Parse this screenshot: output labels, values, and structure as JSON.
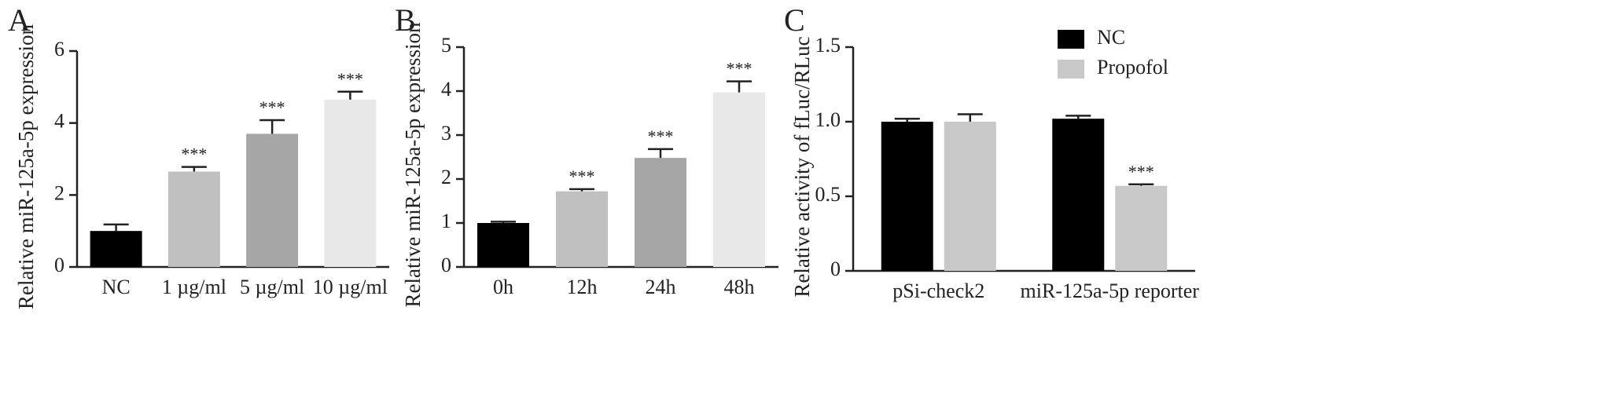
{
  "chart_data": [
    {
      "type": "bar",
      "panel_label": "A",
      "y_label": "Relative miR-125a-5p expression",
      "categories": [
        "NC",
        "1 µg/ml",
        "5 µg/ml",
        "10 µg/ml"
      ],
      "values": [
        1.0,
        2.65,
        3.7,
        4.65
      ],
      "errors": [
        0.18,
        0.13,
        0.38,
        0.22
      ],
      "colors": [
        "#000000",
        "#c0c0c0",
        "#a6a6a6",
        "#e8e8e8"
      ],
      "annotations": [
        null,
        "***",
        "***",
        "***"
      ],
      "ylim": [
        0,
        6
      ],
      "yticks": [
        0,
        2,
        4,
        6
      ]
    },
    {
      "type": "bar",
      "panel_label": "B",
      "y_label": "Relative miR-125a-5p expression",
      "categories": [
        "0h",
        "12h",
        "24h",
        "48h"
      ],
      "values": [
        1.0,
        1.72,
        2.48,
        3.97
      ],
      "errors": [
        0.03,
        0.05,
        0.2,
        0.25
      ],
      "colors": [
        "#000000",
        "#c0c0c0",
        "#a6a6a6",
        "#e8e8e8"
      ],
      "annotations": [
        null,
        "***",
        "***",
        "***"
      ],
      "ylim": [
        0,
        5
      ],
      "yticks": [
        0,
        1,
        2,
        3,
        4,
        5
      ]
    },
    {
      "type": "grouped_bar",
      "panel_label": "C",
      "y_label": "Relative activity of fLuc/RLuc",
      "categories": [
        "pSi-check2",
        "miR-125a-5p reporter"
      ],
      "series": [
        {
          "name": "NC",
          "color": "#000000",
          "values": [
            1.0,
            1.02
          ],
          "errors": [
            0.02,
            0.02
          ],
          "annotations": [
            null,
            null
          ]
        },
        {
          "name": "Propofol",
          "color": "#c8c8c8",
          "values": [
            1.0,
            0.57
          ],
          "errors": [
            0.05,
            0.01
          ],
          "annotations": [
            null,
            "***"
          ]
        }
      ],
      "ylim": [
        0,
        1.5
      ],
      "yticks": [
        0,
        0.5,
        {
          "value": 1,
          "label": "1.0"
        },
        1.5
      ],
      "legend": "top-right"
    }
  ]
}
